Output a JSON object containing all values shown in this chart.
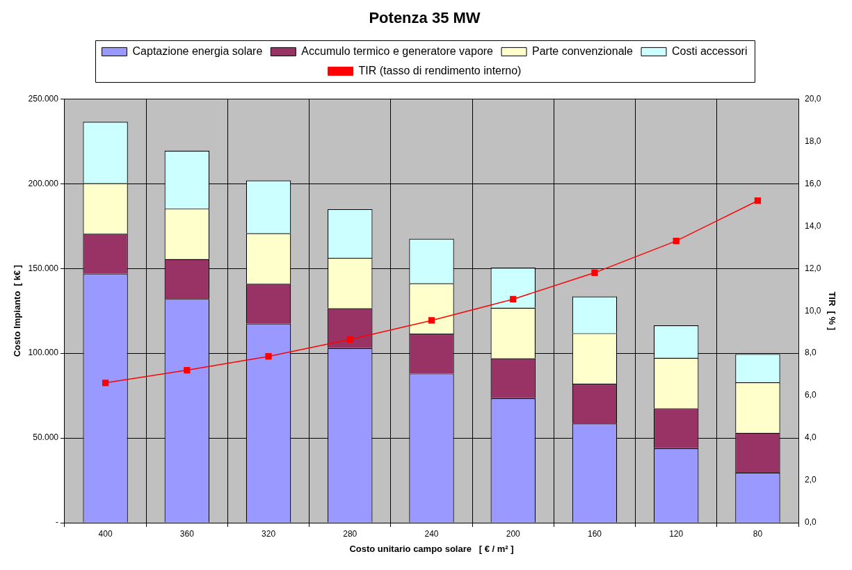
{
  "chart_data": {
    "type": "bar",
    "title": "Potenza 35 MW",
    "xlabel": "Costo unitario campo solare   [ € / m² ]",
    "ylabel": "Costo Impianto  [ k€ ]",
    "y2label": "TIR  [ % ]",
    "categories": [
      "400",
      "360",
      "320",
      "280",
      "240",
      "200",
      "160",
      "120",
      "80"
    ],
    "stacked": true,
    "grid": true,
    "legend": "top",
    "series": [
      {
        "name": "Captazione energia solare",
        "color": "#9999ff",
        "values": [
          147000,
          132000,
          117500,
          103000,
          88000,
          73500,
          58500,
          44000,
          29500
        ]
      },
      {
        "name": "Accumulo termico e generatore vapore",
        "color": "#993366",
        "values": [
          23500,
          23500,
          23500,
          23500,
          23500,
          23500,
          23500,
          23500,
          23500
        ]
      },
      {
        "name": "Parte convenzionale",
        "color": "#ffffcc",
        "values": [
          29800,
          29800,
          29800,
          29800,
          29800,
          29800,
          29800,
          29800,
          29800
        ]
      },
      {
        "name": "Costi accessori",
        "color": "#ccffff",
        "values": [
          36200,
          34200,
          31200,
          28700,
          26200,
          23700,
          21700,
          19200,
          16700
        ]
      },
      {
        "name": "TIR (tasso di rendimento interno)",
        "type": "line",
        "axis": "y2",
        "color": "#ff0000",
        "marker": "square",
        "line_style": "solid",
        "values": [
          6.6,
          7.2,
          7.85,
          8.65,
          9.55,
          10.55,
          11.8,
          13.3,
          15.2
        ]
      }
    ],
    "ylim": [
      0,
      250000
    ],
    "yticks": [
      {
        "value": 0,
        "label": "-"
      },
      {
        "value": 50000,
        "label": "50.000"
      },
      {
        "value": 100000,
        "label": "100.000"
      },
      {
        "value": 150000,
        "label": "150.000"
      },
      {
        "value": 200000,
        "label": "200.000"
      },
      {
        "value": 250000,
        "label": "250.000"
      }
    ],
    "y2lim": [
      0,
      20
    ],
    "y2ticks": [
      {
        "value": 0,
        "label": "0,0"
      },
      {
        "value": 2,
        "label": "2,0"
      },
      {
        "value": 4,
        "label": "4,0"
      },
      {
        "value": 6,
        "label": "6,0"
      },
      {
        "value": 8,
        "label": "8,0"
      },
      {
        "value": 10,
        "label": "10,0"
      },
      {
        "value": 12,
        "label": "12,0"
      },
      {
        "value": 14,
        "label": "14,0"
      },
      {
        "value": 16,
        "label": "16,0"
      },
      {
        "value": 18,
        "label": "18,0"
      },
      {
        "value": 20,
        "label": "20,0"
      }
    ]
  }
}
